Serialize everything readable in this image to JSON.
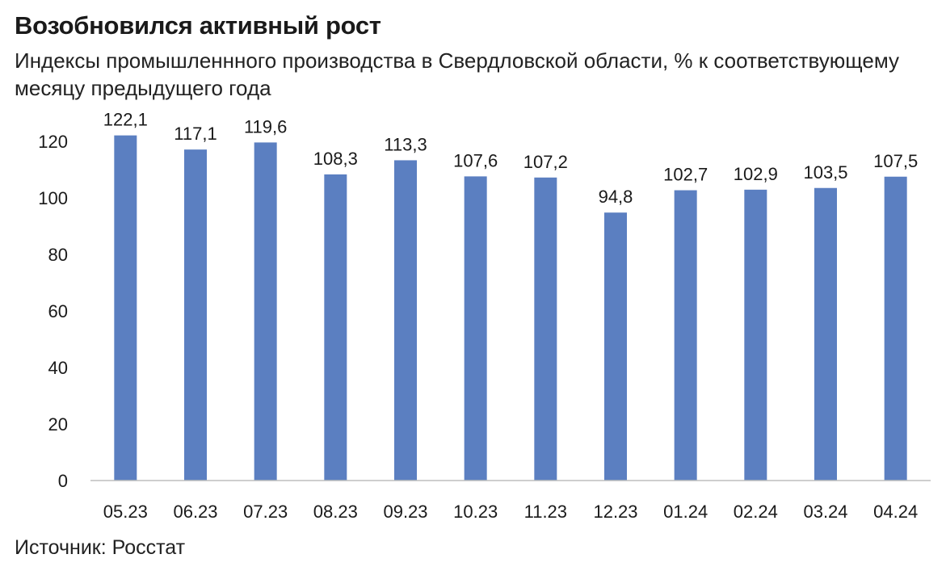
{
  "header": {
    "title": "Возобновился активный рост",
    "subtitle": "Индексы промышленнного производства в Свердловской области, % к соответствующему месяцу предыдущего года"
  },
  "footer": {
    "source": "Источник: Росстат"
  },
  "chart_data": {
    "type": "bar",
    "title": "Возобновился активный рост",
    "subtitle": "Индексы промышленнного производства в Свердловской области, % к соответствующему месяцу предыдущего года",
    "categories": [
      "05.23",
      "06.23",
      "07.23",
      "08.23",
      "09.23",
      "10.23",
      "11.23",
      "12.23",
      "01.24",
      "02.24",
      "03.24",
      "04.24"
    ],
    "values": [
      122.1,
      117.1,
      119.6,
      108.3,
      113.3,
      107.6,
      107.2,
      94.8,
      102.7,
      102.9,
      103.5,
      107.5
    ],
    "data_labels": [
      "122,1",
      "117,1",
      "119,6",
      "108,3",
      "113,3",
      "107,6",
      "107,2",
      "94,8",
      "102,7",
      "102,9",
      "103,5",
      "107,5"
    ],
    "yticks": [
      0,
      20,
      40,
      60,
      80,
      100,
      120
    ],
    "ylim": [
      0,
      130
    ],
    "xlabel": "",
    "ylabel": "",
    "grid": false,
    "legend": "none",
    "bar_color": "#5b7fc1"
  }
}
